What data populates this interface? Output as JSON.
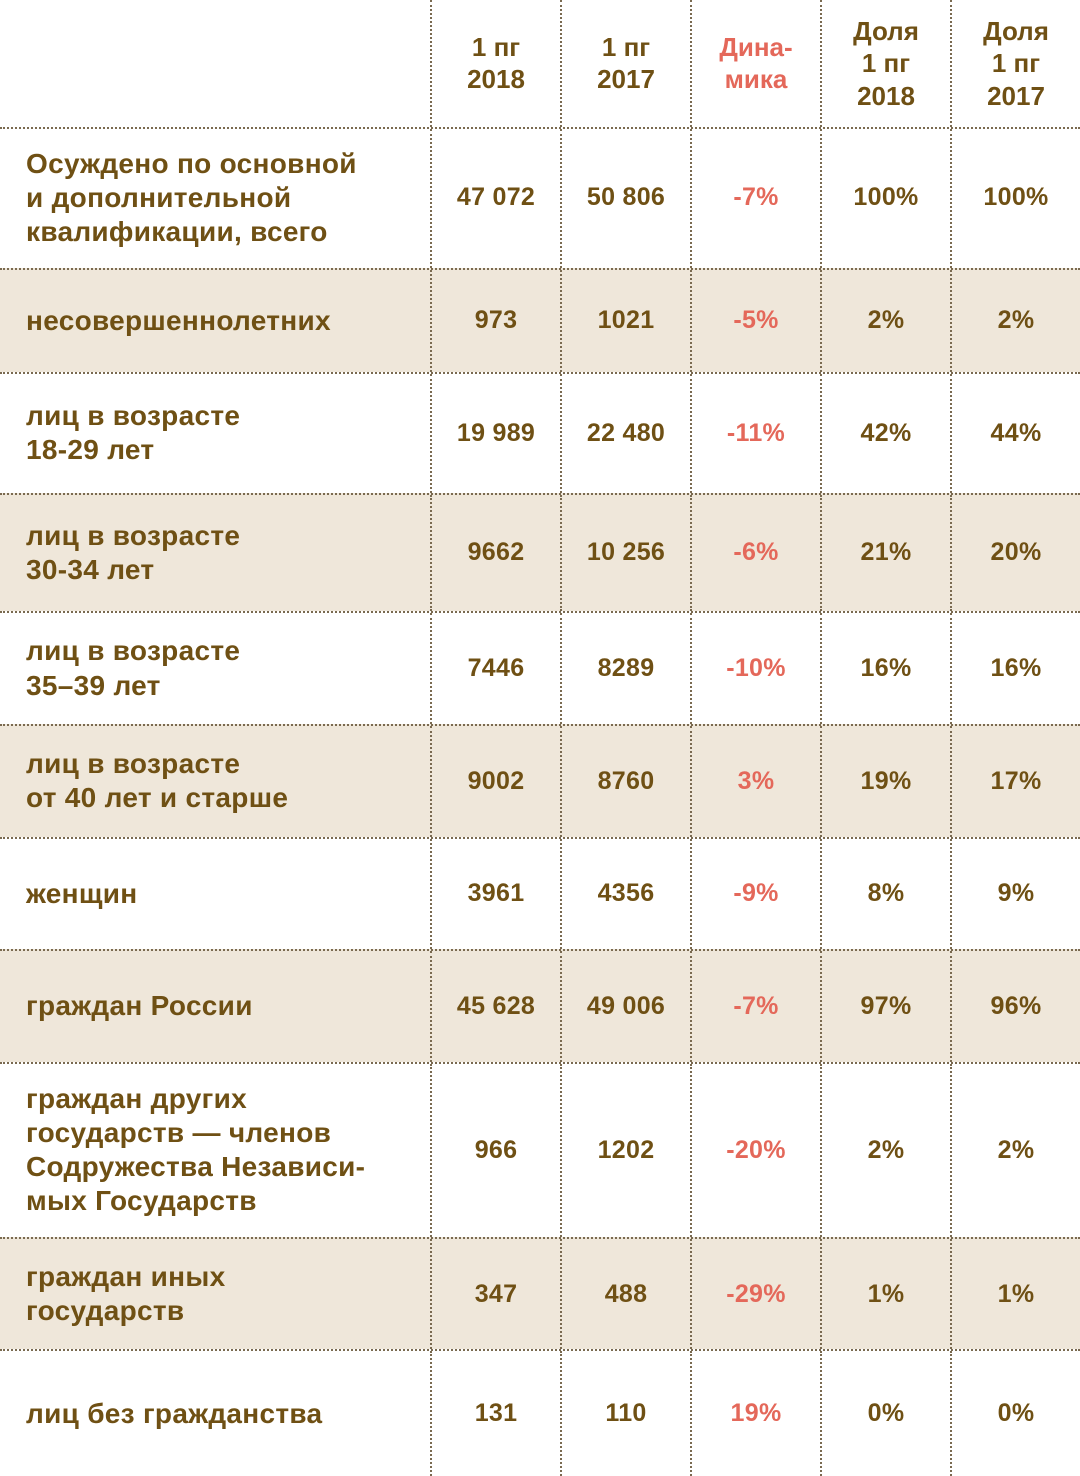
{
  "colors": {
    "text_brown": "#6f5014",
    "dynamics_red": "#e4685a",
    "row_shade": "#efe7da",
    "dotted_line": "#7a6a50"
  },
  "chart_data": {
    "type": "table",
    "columns": [
      "",
      "1 пг\n2018",
      "1 пг\n2017",
      "Дина-\nмика",
      "Доля\n1 пг\n2018",
      "Доля\n1 пг\n2017"
    ],
    "rows": [
      {
        "label": "Осуждено по основной\nи дополнительной\nквалификации, всего",
        "v2018": "47 072",
        "v2017": "50 806",
        "dynamics": "-7%",
        "share2018": "100%",
        "share2017": "100%",
        "shaded": false
      },
      {
        "label": "несовершеннолетних",
        "v2018": "973",
        "v2017": "1021",
        "dynamics": "-5%",
        "share2018": "2%",
        "share2017": "2%",
        "shaded": true
      },
      {
        "label": "лиц в возрасте\n18-29 лет",
        "v2018": "19 989",
        "v2017": "22 480",
        "dynamics": "-11%",
        "share2018": "42%",
        "share2017": "44%",
        "shaded": false
      },
      {
        "label": "лиц в возрасте\n30-34 лет",
        "v2018": "9662",
        "v2017": "10 256",
        "dynamics": "-6%",
        "share2018": "21%",
        "share2017": "20%",
        "shaded": true
      },
      {
        "label": "лиц в возрасте\n35–39 лет",
        "v2018": "7446",
        "v2017": "8289",
        "dynamics": "-10%",
        "share2018": "16%",
        "share2017": "16%",
        "shaded": false
      },
      {
        "label": "лиц в возрасте\nот 40 лет и старше",
        "v2018": "9002",
        "v2017": "8760",
        "dynamics": "3%",
        "share2018": "19%",
        "share2017": "17%",
        "shaded": true
      },
      {
        "label": "женщин",
        "v2018": "3961",
        "v2017": "4356",
        "dynamics": "-9%",
        "share2018": "8%",
        "share2017": "9%",
        "shaded": false
      },
      {
        "label": "граждан России",
        "v2018": "45 628",
        "v2017": "49 006",
        "dynamics": "-7%",
        "share2018": "97%",
        "share2017": "96%",
        "shaded": true
      },
      {
        "label": "граждан других\nгосударств — членов\nСодружества Независи-\nмых Государств",
        "v2018": "966",
        "v2017": "1202",
        "dynamics": "-20%",
        "share2018": "2%",
        "share2017": "2%",
        "shaded": false
      },
      {
        "label": "граждан иных\nгосударств",
        "v2018": "347",
        "v2017": "488",
        "dynamics": "-29%",
        "share2018": "1%",
        "share2017": "1%",
        "shaded": true
      },
      {
        "label": "лиц без гражданства",
        "v2018": "131",
        "v2017": "110",
        "dynamics": "19%",
        "share2018": "0%",
        "share2017": "0%",
        "shaded": false
      }
    ]
  }
}
